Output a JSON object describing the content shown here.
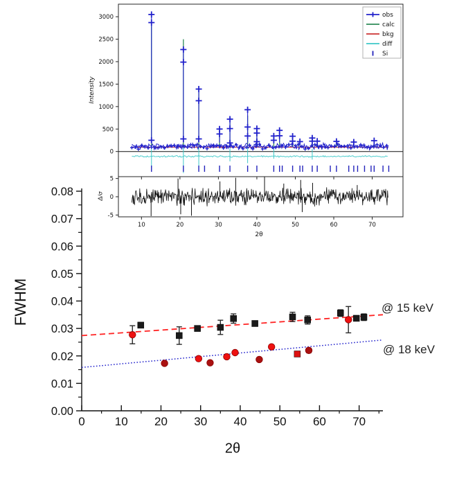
{
  "figure": {
    "description": "Rietveld refinement of Si standard (inset) with FWHM vs 2-theta instrumental resolution plot",
    "annotations": {
      "series1": "@ 15 keV",
      "series2": "@ 18 keV"
    }
  },
  "chart_data": {
    "pattern": {
      "type": "line",
      "title": "",
      "xlabel": "2θ",
      "ylabel": "Intensity",
      "xlim": [
        4,
        78
      ],
      "ylim": [
        -560,
        3280
      ],
      "xticks": [
        10,
        20,
        30,
        40,
        50,
        60,
        70
      ],
      "xtick_labels": [
        "10",
        "20",
        "30",
        "40",
        "50",
        "60",
        "70"
      ],
      "yticks": [
        0,
        500,
        1000,
        1500,
        2000,
        2500,
        3000
      ],
      "ytick_labels": [
        "0",
        "500",
        "1000",
        "1500",
        "2000",
        "2500",
        "3000"
      ],
      "data_range": [
        7.5,
        74.2
      ],
      "grid": false,
      "legend_position": "upper right",
      "legend": [
        {
          "label": "obs",
          "marker": "plus-line",
          "color": "#2222cc"
        },
        {
          "label": "calc",
          "marker": "line",
          "color": "#2e8b57"
        },
        {
          "label": "bkg",
          "marker": "line",
          "color": "#cc3333"
        },
        {
          "label": "diff",
          "marker": "line",
          "color": "#3cc8c8"
        },
        {
          "label": "Si",
          "marker": "vtick",
          "color": "#2222bb"
        }
      ],
      "background_level": 95,
      "obs_band": {
        "center": 115,
        "amplitude": 85
      },
      "diff_line": {
        "center": -110,
        "amplitude": 22
      },
      "peaks": [
        {
          "x": 12.6,
          "calc": 2900,
          "obs": [
            3050,
            2870,
            250
          ]
        },
        {
          "x": 20.9,
          "calc": 2500,
          "obs": [
            2270,
            1990,
            280
          ]
        },
        {
          "x": 24.9,
          "calc": 1330,
          "obs": [
            1390,
            1130,
            280
          ]
        },
        {
          "x": 30.3,
          "calc": 450,
          "obs": [
            500,
            390
          ]
        },
        {
          "x": 33.0,
          "calc": 650,
          "obs": [
            720,
            510,
            190
          ]
        },
        {
          "x": 37.6,
          "calc": 800,
          "obs": [
            930,
            545,
            345
          ]
        },
        {
          "x": 40.0,
          "calc": 440,
          "obs": [
            510,
            410,
            220
          ]
        },
        {
          "x": 44.4,
          "calc": 300,
          "obs": [
            345,
            250
          ]
        },
        {
          "x": 45.9,
          "calc": 400,
          "obs": [
            470,
            350
          ]
        },
        {
          "x": 49.3,
          "calc": 290,
          "obs": [
            340,
            230
          ]
        },
        {
          "x": 51.2,
          "calc": 200,
          "obs": [
            220
          ]
        },
        {
          "x": 54.4,
          "calc": 260,
          "obs": [
            300,
            230
          ]
        },
        {
          "x": 55.7,
          "calc": 200,
          "obs": [
            230
          ]
        },
        {
          "x": 60.7,
          "calc": 190,
          "obs": [
            225
          ]
        },
        {
          "x": 65.2,
          "calc": 170,
          "obs": [
            210
          ]
        },
        {
          "x": 70.5,
          "calc": 200,
          "obs": [
            240
          ]
        }
      ],
      "diff_spikes": [
        {
          "x": 12.6,
          "lo": -380,
          "hi": 150
        },
        {
          "x": 20.9,
          "lo": -480,
          "hi": 160
        },
        {
          "x": 24.9,
          "lo": -380,
          "hi": 120
        },
        {
          "x": 33.0,
          "lo": -220,
          "hi": 80
        },
        {
          "x": 37.6,
          "lo": -260,
          "hi": 100
        },
        {
          "x": 44.4,
          "lo": -160,
          "hi": 60
        },
        {
          "x": 54.4,
          "lo": -180,
          "hi": 60
        }
      ],
      "si_tick_positions": [
        12.6,
        20.9,
        24.9,
        26.4,
        30.3,
        33.0,
        37.6,
        40.0,
        44.4,
        45.9,
        46.6,
        49.3,
        51.2,
        51.9,
        54.4,
        55.7,
        59.1,
        60.7,
        63.9,
        65.2,
        66.2,
        68.0,
        69.7,
        70.5,
        72.8,
        74.3
      ],
      "colors": {
        "obs": "#2222cc",
        "calc": "#2e8b57",
        "bkg": "#cc3333",
        "diff": "#3cc8c8",
        "si": "#2222bb",
        "frame": "#262626",
        "zero_line": "#111111"
      }
    },
    "residual": {
      "type": "line",
      "xlabel": "2θ",
      "ylabel": "Δ/σ",
      "xlim": [
        4,
        78
      ],
      "ylim": [
        -5.5,
        5.5
      ],
      "yticks": [
        -5,
        0,
        5
      ],
      "ytick_labels": [
        "-5",
        "0",
        "5"
      ],
      "xticks": [
        10,
        20,
        30,
        40,
        50,
        60,
        70
      ],
      "xtick_labels": [
        "10",
        "20",
        "30",
        "40",
        "50",
        "60",
        "70"
      ],
      "data_range": [
        7.5,
        74.2
      ],
      "noise_amplitude": 1.4,
      "color": "#111111",
      "spikes": [
        {
          "x": 12.5,
          "v": -5.3
        },
        {
          "x": 19.5,
          "v": 5.0
        },
        {
          "x": 20.2,
          "v": -4.8
        },
        {
          "x": 23.0,
          "v": -5.2
        },
        {
          "x": 30.4,
          "v": 4.2
        },
        {
          "x": 34.5,
          "v": 5.2
        },
        {
          "x": 42.0,
          "v": 5.5
        },
        {
          "x": 47.0,
          "v": 3.6
        },
        {
          "x": 51.4,
          "v": 4.6
        },
        {
          "x": 51.8,
          "v": -4.2
        },
        {
          "x": 54.5,
          "v": 3.8
        },
        {
          "x": 66.1,
          "v": 3.2
        }
      ]
    },
    "fwhm": {
      "type": "scatter",
      "xlabel": "2θ",
      "ylabel": "FWHM",
      "xlim": [
        0,
        76
      ],
      "ylim": [
        0,
        0.08
      ],
      "xticks": [
        0,
        10,
        20,
        30,
        40,
        50,
        60,
        70
      ],
      "xtick_labels": [
        "0",
        "10",
        "20",
        "30",
        "40",
        "50",
        "60",
        "70"
      ],
      "yticks": [
        0,
        0.01,
        0.02,
        0.03,
        0.04,
        0.05,
        0.06,
        0.07,
        0.08
      ],
      "ytick_labels": [
        "0.00",
        "0.01",
        "0.02",
        "0.03",
        "0.04",
        "0.05",
        "0.06",
        "0.07",
        "0.08"
      ],
      "grid": false,
      "series": [
        {
          "name": "@ 15 keV",
          "marker": "square",
          "color": "#1a1a1a",
          "fit": {
            "style": "dashed",
            "color": "#ff2222",
            "x0": 0,
            "y0": 0.0274,
            "x1": 76,
            "y1": 0.035
          },
          "points": [
            {
              "x": 12.8,
              "y": 0.0277,
              "err": 0.0033,
              "marker": "circle",
              "color": "#ee1111"
            },
            {
              "x": 14.9,
              "y": 0.0312,
              "err": 0.0008
            },
            {
              "x": 24.6,
              "y": 0.0274,
              "err": 0.0032
            },
            {
              "x": 29.2,
              "y": 0.03,
              "err": 0.0007
            },
            {
              "x": 35.0,
              "y": 0.0304,
              "err": 0.0026
            },
            {
              "x": 38.3,
              "y": 0.0336,
              "err": 0.0017
            },
            {
              "x": 43.7,
              "y": 0.0318,
              "err": 0.0007
            },
            {
              "x": 53.2,
              "y": 0.0342,
              "err": 0.0017
            },
            {
              "x": 57.0,
              "y": 0.0331,
              "err": 0.0015
            },
            {
              "x": 65.3,
              "y": 0.0356,
              "err": 0.0012
            },
            {
              "x": 67.3,
              "y": 0.0332,
              "err": 0.0048,
              "marker": "circle",
              "color": "#ee1111"
            },
            {
              "x": 69.3,
              "y": 0.0337,
              "err": 0.0007
            },
            {
              "x": 71.2,
              "y": 0.0341,
              "err": 0.0012
            }
          ]
        },
        {
          "name": "@ 18 keV",
          "marker": "circle",
          "color": "#ee1111",
          "fit": {
            "style": "dotted",
            "color": "#2222cc",
            "x0": 0,
            "y0": 0.0158,
            "x1": 76,
            "y1": 0.0258
          },
          "points": [
            {
              "x": 20.9,
              "y": 0.0173,
              "color": "#aa1111"
            },
            {
              "x": 29.5,
              "y": 0.019
            },
            {
              "x": 32.4,
              "y": 0.0175,
              "color": "#aa1111"
            },
            {
              "x": 36.6,
              "y": 0.0197
            },
            {
              "x": 38.7,
              "y": 0.0212
            },
            {
              "x": 44.8,
              "y": 0.0187,
              "color": "#aa1111"
            },
            {
              "x": 47.9,
              "y": 0.0233
            },
            {
              "x": 54.4,
              "y": 0.0207,
              "err": 0.0008,
              "marker": "square",
              "color": "#dd1111"
            },
            {
              "x": 57.3,
              "y": 0.022,
              "err": 0.0008,
              "color": "#aa1111"
            }
          ]
        }
      ],
      "error_bar_color": "#2a2a2a"
    }
  }
}
